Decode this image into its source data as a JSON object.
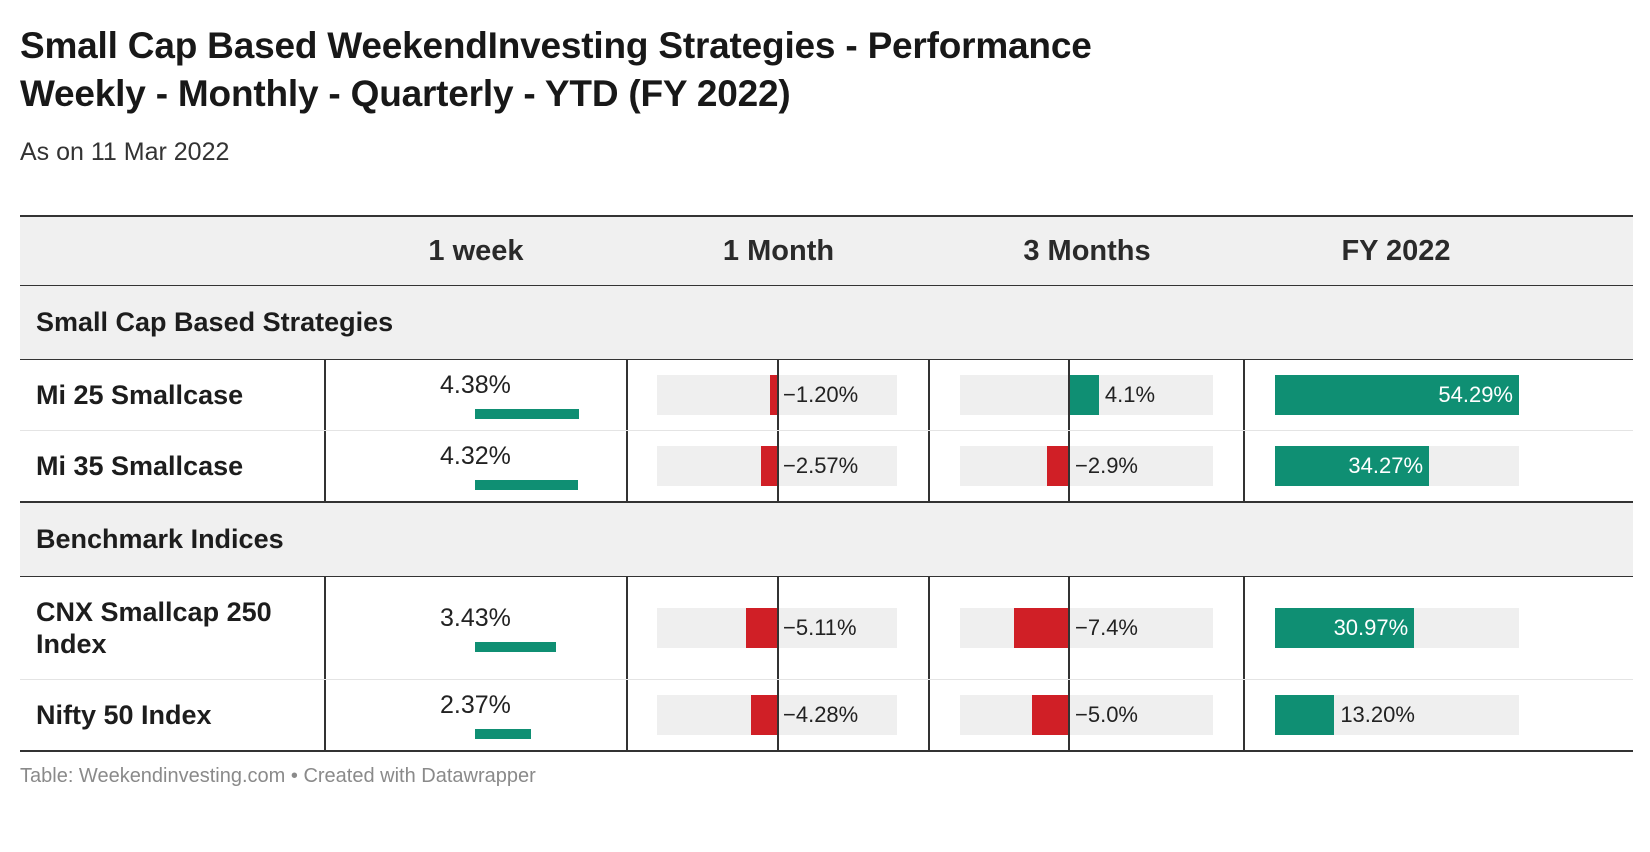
{
  "title_line1": "Small Cap Based WeekendInvesting Strategies - Performance",
  "title_line2": "Weekly - Monthly - Quarterly - YTD (FY 2022)",
  "subtitle": "As on 11 Mar 2022",
  "footer": "Table: Weekendinvesting.com • Created with Datawrapper",
  "colors": {
    "positive": "#0f8f73",
    "negative": "#d01f26",
    "track": "#efefef",
    "header_bg": "#f0f0f0"
  },
  "chart_data": {
    "type": "table",
    "columns": [
      "",
      "1 week",
      "1 Month",
      "3 Months",
      "FY 2022"
    ],
    "groups": [
      {
        "name": "Small Cap Based Strategies",
        "rows": [
          {
            "name": "Mi 25 Smallcase",
            "week": 4.38,
            "week_label": "4.38%",
            "month": -1.2,
            "month_label": "−1.20%",
            "q": 4.1,
            "q_label": "4.1%",
            "fy": 54.29,
            "fy_label": "54.29%"
          },
          {
            "name": "Mi 35 Smallcase",
            "week": 4.32,
            "week_label": "4.32%",
            "month": -2.57,
            "month_label": "−2.57%",
            "q": -2.9,
            "q_label": "−2.9%",
            "fy": 34.27,
            "fy_label": "34.27%"
          }
        ]
      },
      {
        "name": "Benchmark Indices",
        "rows": [
          {
            "name": "CNX Smallcap 250 Index",
            "week": 3.43,
            "week_label": "3.43%",
            "month": -5.11,
            "month_label": "−5.11%",
            "q": -7.4,
            "q_label": "−7.4%",
            "fy": 30.97,
            "fy_label": "30.97%"
          },
          {
            "name": "Nifty 50 Index",
            "week": 2.37,
            "week_label": "2.37%",
            "month": -4.28,
            "month_label": "−4.28%",
            "q": -5.0,
            "q_label": "−5.0%",
            "fy": 13.2,
            "fy_label": "13.20%"
          }
        ]
      }
    ]
  }
}
